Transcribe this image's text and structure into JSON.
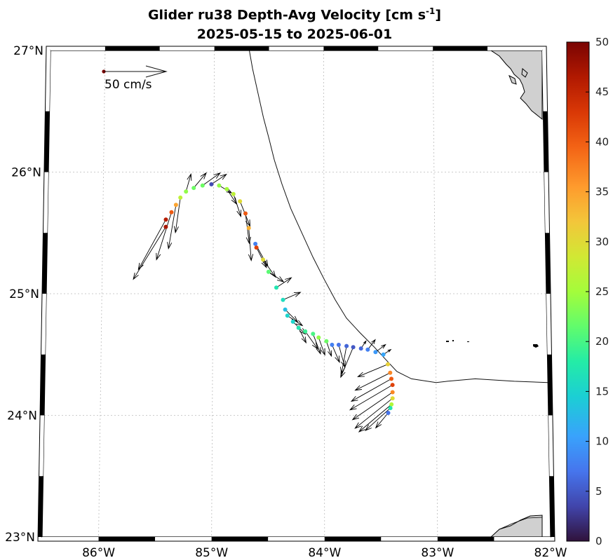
{
  "title": {
    "line1_prefix": "Glider ru38 Depth-Avg Velocity [cm s",
    "line1_sup": "-1",
    "line1_suffix": "]",
    "line2": "2025-05-15 to 2025-06-01"
  },
  "map": {
    "lon_range": [
      -86.5,
      -82.0
    ],
    "lat_range": [
      23.0,
      27.0
    ],
    "lon_ticks": [
      {
        "value": -86,
        "label": "86°W"
      },
      {
        "value": -85,
        "label": "85°W"
      },
      {
        "value": -84,
        "label": "84°W"
      },
      {
        "value": -83,
        "label": "83°W"
      },
      {
        "value": -82,
        "label": "82°W"
      }
    ],
    "lat_ticks": [
      {
        "value": 23,
        "label": "23°N"
      },
      {
        "value": 24,
        "label": "24°N"
      },
      {
        "value": 25,
        "label": "25°N"
      },
      {
        "value": 26,
        "label": "26°N"
      },
      {
        "value": 27,
        "label": "27°N"
      }
    ],
    "grid": true,
    "land_color": "#d0d0d0"
  },
  "reference_arrow": {
    "label": "50 cm/s",
    "speed": 50
  },
  "colorbar": {
    "min": 0,
    "max": 50,
    "ticks": [
      0,
      5,
      10,
      15,
      20,
      25,
      30,
      35,
      40,
      45,
      50
    ],
    "colormap": "turbo"
  },
  "boundary_line": [
    [
      -84.68,
      27.0
    ],
    [
      -84.65,
      26.85
    ],
    [
      -84.6,
      26.65
    ],
    [
      -84.55,
      26.45
    ],
    [
      -84.5,
      26.28
    ],
    [
      -84.45,
      26.1
    ],
    [
      -84.38,
      25.9
    ],
    [
      -84.3,
      25.7
    ],
    [
      -84.2,
      25.5
    ],
    [
      -84.1,
      25.3
    ],
    [
      -84.0,
      25.12
    ],
    [
      -83.9,
      24.95
    ],
    [
      -83.8,
      24.8
    ],
    [
      -83.68,
      24.68
    ],
    [
      -83.55,
      24.56
    ],
    [
      -83.45,
      24.46
    ],
    [
      -83.35,
      24.36
    ],
    [
      -83.22,
      24.3
    ],
    [
      -83.0,
      24.27
    ],
    [
      -82.9,
      24.28
    ],
    [
      -82.65,
      24.3
    ],
    [
      -82.3,
      24.28
    ],
    [
      -82.0,
      24.27
    ]
  ],
  "track": [
    {
      "lon": -85.43,
      "lat": 25.55,
      "speed": 47,
      "u": -26,
      "v": -42
    },
    {
      "lon": -85.43,
      "lat": 25.61,
      "speed": 46,
      "u": -22,
      "v": -40
    },
    {
      "lon": -85.38,
      "lat": 25.67,
      "speed": 40,
      "u": -12,
      "v": -38
    },
    {
      "lon": -85.34,
      "lat": 25.73,
      "speed": 35,
      "u": -6,
      "v": -35
    },
    {
      "lon": -85.3,
      "lat": 25.79,
      "speed": 27,
      "u": -4,
      "v": -28
    },
    {
      "lon": -85.25,
      "lat": 25.84,
      "speed": 24,
      "u": 4,
      "v": 14
    },
    {
      "lon": -85.18,
      "lat": 25.87,
      "speed": 22,
      "u": 10,
      "v": 12
    },
    {
      "lon": -85.1,
      "lat": 25.89,
      "speed": 22,
      "u": 14,
      "v": 10
    },
    {
      "lon": -85.02,
      "lat": 25.9,
      "speed": 4,
      "u": 12,
      "v": 8
    },
    {
      "lon": -84.95,
      "lat": 25.89,
      "speed": 24,
      "u": 10,
      "v": -6
    },
    {
      "lon": -84.88,
      "lat": 25.86,
      "speed": 25,
      "u": 8,
      "v": -12
    },
    {
      "lon": -84.82,
      "lat": 25.82,
      "speed": 27,
      "u": 6,
      "v": -18
    },
    {
      "lon": -84.76,
      "lat": 25.76,
      "speed": 30,
      "u": 8,
      "v": -20
    },
    {
      "lon": -84.71,
      "lat": 25.66,
      "speed": 40,
      "u": 3,
      "v": -24
    },
    {
      "lon": -84.68,
      "lat": 25.54,
      "speed": 34,
      "u": 2,
      "v": -26
    },
    {
      "lon": -84.62,
      "lat": 25.41,
      "speed": 8,
      "u": 10,
      "v": -18
    },
    {
      "lon": -84.61,
      "lat": 25.38,
      "speed": 42,
      "u": 8,
      "v": -16
    },
    {
      "lon": -84.55,
      "lat": 25.28,
      "speed": 30,
      "u": 10,
      "v": -14
    },
    {
      "lon": -84.5,
      "lat": 25.18,
      "speed": 21,
      "u": 12,
      "v": -8
    },
    {
      "lon": -84.43,
      "lat": 25.05,
      "speed": 17,
      "u": 12,
      "v": 8
    },
    {
      "lon": -84.37,
      "lat": 24.95,
      "speed": 16,
      "u": 14,
      "v": 6
    },
    {
      "lon": -84.35,
      "lat": 24.87,
      "speed": 13,
      "u": 10,
      "v": -10
    },
    {
      "lon": -84.33,
      "lat": 24.82,
      "speed": 15,
      "u": 12,
      "v": -8
    },
    {
      "lon": -84.28,
      "lat": 24.77,
      "speed": 15,
      "u": 10,
      "v": -10
    },
    {
      "lon": -84.23,
      "lat": 24.72,
      "speed": 17,
      "u": 6,
      "v": -12
    },
    {
      "lon": -84.17,
      "lat": 24.69,
      "speed": 19,
      "u": 10,
      "v": -14
    },
    {
      "lon": -84.1,
      "lat": 24.67,
      "speed": 20,
      "u": 6,
      "v": -16
    },
    {
      "lon": -84.05,
      "lat": 24.64,
      "speed": 24,
      "u": 5,
      "v": -14
    },
    {
      "lon": -83.98,
      "lat": 24.61,
      "speed": 22,
      "u": 4,
      "v": -12
    },
    {
      "lon": -83.93,
      "lat": 24.58,
      "speed": 8,
      "u": 6,
      "v": -14
    },
    {
      "lon": -83.87,
      "lat": 24.58,
      "speed": 7,
      "u": 5,
      "v": -18
    },
    {
      "lon": -83.8,
      "lat": 24.57,
      "speed": 6,
      "u": -4,
      "v": -22
    },
    {
      "lon": -83.74,
      "lat": 24.56,
      "speed": 5,
      "u": -10,
      "v": -24
    },
    {
      "lon": -83.67,
      "lat": 24.55,
      "speed": 6,
      "u": 4,
      "v": 6
    },
    {
      "lon": -83.61,
      "lat": 24.54,
      "speed": 8,
      "u": 6,
      "v": 8
    },
    {
      "lon": -83.54,
      "lat": 24.52,
      "speed": 10,
      "u": 8,
      "v": 6
    },
    {
      "lon": -83.47,
      "lat": 24.5,
      "speed": 11,
      "u": 6,
      "v": 4
    },
    {
      "lon": -83.43,
      "lat": 24.42,
      "speed": 31,
      "u": -24,
      "v": -10
    },
    {
      "lon": -83.41,
      "lat": 24.35,
      "speed": 37,
      "u": -28,
      "v": -14
    },
    {
      "lon": -83.4,
      "lat": 24.3,
      "speed": 40,
      "u": -32,
      "v": -18
    },
    {
      "lon": -83.39,
      "lat": 24.25,
      "speed": 42,
      "u": -34,
      "v": -20
    },
    {
      "lon": -83.39,
      "lat": 24.19,
      "speed": 37,
      "u": -32,
      "v": -22
    },
    {
      "lon": -83.39,
      "lat": 24.14,
      "speed": 30,
      "u": -30,
      "v": -24
    },
    {
      "lon": -83.4,
      "lat": 24.09,
      "speed": 26,
      "u": -26,
      "v": -22
    },
    {
      "lon": -83.41,
      "lat": 24.06,
      "speed": 17,
      "u": -20,
      "v": -18
    },
    {
      "lon": -83.43,
      "lat": 24.02,
      "speed": 7,
      "u": -10,
      "v": -12
    }
  ]
}
